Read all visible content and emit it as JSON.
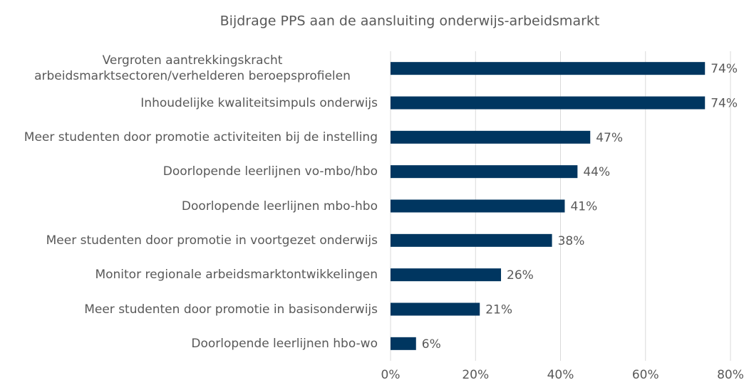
{
  "chart_data": {
    "type": "barh",
    "title": "Bijdrage PPS aan de aansluiting onderwijs-arbeidsmarkt",
    "categories": [
      "Vergroten aantrekkingskracht arbeidsmarktsectoren/verhelderen beroepsprofielen",
      "Inhoudelijke kwaliteitsimpuls onderwijs",
      "Meer studenten door promotie activiteiten bij de instelling",
      "Doorlopende leerlijnen vo-mbo/hbo",
      "Doorlopende leerlijnen mbo-hbo",
      "Meer studenten door promotie in voortgezet onderwijs",
      "Monitor regionale arbeidsmarktontwikkelingen",
      "Meer studenten door promotie in basisonderwijs",
      "Doorlopende leerlijnen hbo-wo"
    ],
    "values": [
      74,
      74,
      47,
      44,
      41,
      38,
      26,
      21,
      6
    ],
    "value_labels": [
      "74%",
      "74%",
      "47%",
      "44%",
      "41%",
      "38%",
      "26%",
      "21%",
      "6%"
    ],
    "color": "#003660",
    "xlim": [
      0,
      80
    ],
    "xticks": [
      {
        "value": 0,
        "label": "0%"
      },
      {
        "value": 20,
        "label": "20%"
      },
      {
        "value": 40,
        "label": "40%"
      },
      {
        "value": 60,
        "label": "60%"
      },
      {
        "value": 80,
        "label": "80%"
      }
    ],
    "grid": true
  }
}
